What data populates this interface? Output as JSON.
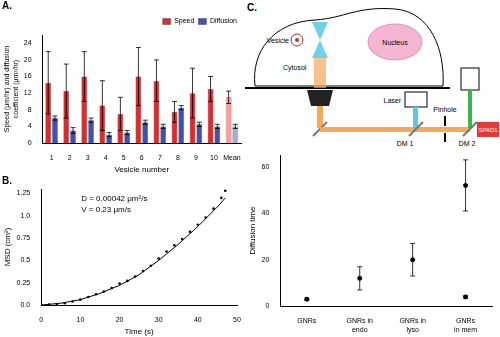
{
  "chart_data": [
    {
      "type": "bar",
      "title": "A.",
      "x_label": "Vesicle number",
      "y_label": "Speed (μm/hr) and diffusion coefficient (μm²/hr)",
      "categories": [
        "1",
        "2",
        "3",
        "4",
        "5",
        "6",
        "7",
        "8",
        "9",
        "10",
        "Mean"
      ],
      "series": [
        {
          "name": "Speed",
          "color": "#d32f2f",
          "colors": [
            "#d32f2f",
            "#d32f2f",
            "#d32f2f",
            "#d32f2f",
            "#d32f2f",
            "#d32f2f",
            "#d32f2f",
            "#d32f2f",
            "#d32f2f",
            "#d32f2f",
            "#f2a0a0"
          ],
          "values": [
            14.5,
            12.5,
            16,
            9,
            7,
            16,
            15,
            7.5,
            12,
            13,
            11
          ],
          "errors": [
            7.5,
            6.5,
            6,
            6,
            4,
            7,
            5,
            2.5,
            6,
            3,
            1.5
          ]
        },
        {
          "name": "Diffusion",
          "color": "#3f51b5",
          "colors": [
            "#3f51b5",
            "#3f51b5",
            "#3f51b5",
            "#3f51b5",
            "#3f51b5",
            "#3f51b5",
            "#3f51b5",
            "#3f51b5",
            "#3f51b5",
            "#3f51b5",
            "#a4abe0"
          ],
          "values": [
            6,
            3,
            5.5,
            2,
            2.5,
            5,
            4,
            8.5,
            4.5,
            4,
            4
          ],
          "errors": [
            0.5,
            0.7,
            0.5,
            0.5,
            0.5,
            0.5,
            0.5,
            0.5,
            0.5,
            0.5,
            0.5
          ]
        }
      ],
      "ylim": [
        0,
        26
      ],
      "yticks": [
        0,
        4,
        8,
        12,
        16,
        20,
        24
      ],
      "grid": false,
      "legend": "top-right"
    },
    {
      "type": "scatter",
      "title": "B.",
      "x_label": "Time (s)",
      "y_label": "MSD (cm²)",
      "annotations": [
        "D = 0.00042 μm²/s",
        "V = 0.23 μm/s"
      ],
      "series": [
        {
          "type": "scatter",
          "marker": "circle",
          "color": "#000000",
          "x": [
            0,
            2,
            4,
            6,
            8,
            10,
            12,
            14,
            16,
            18,
            20,
            22,
            24,
            26,
            28,
            30,
            32,
            34,
            36,
            38,
            40,
            42,
            44,
            46,
            47
          ],
          "values": [
            0,
            0.005,
            0.01,
            0.02,
            0.04,
            0.06,
            0.09,
            0.12,
            0.15,
            0.19,
            0.24,
            0.27,
            0.32,
            0.38,
            0.44,
            0.52,
            0.6,
            0.67,
            0.74,
            0.82,
            0.9,
            0.98,
            1.08,
            1.2,
            1.28
          ]
        },
        {
          "type": "line",
          "line_style": "solid",
          "color": "#000000",
          "x": [
            0,
            5,
            10,
            15,
            20,
            25,
            30,
            35,
            40,
            45,
            47
          ],
          "values": [
            0,
            0.02,
            0.06,
            0.13,
            0.22,
            0.34,
            0.5,
            0.68,
            0.88,
            1.1,
            1.2
          ]
        }
      ],
      "xlim": [
        0,
        50
      ],
      "xticks": [
        0,
        10,
        20,
        30,
        40,
        50
      ],
      "ylim": [
        0,
        1.3
      ],
      "yticks": [
        {
          "value": 0,
          "label": "0.0"
        },
        0.25,
        0.5,
        0.75,
        {
          "value": 1,
          "label": "1.0"
        },
        1.25
      ],
      "grid": false
    },
    {
      "type": "scatter",
      "y_label": "Diffusion time",
      "categories": [
        "GNRs",
        "GNRs in endo",
        "GNRs in lyso",
        "GNRs in mem"
      ],
      "series": [
        {
          "marker": "circle",
          "color": "#000000",
          "values": [
            3,
            12,
            20,
            52
          ],
          "errors": [
            0.5,
            5,
            7,
            11
          ]
        },
        {
          "marker": "circle",
          "color": "#000000",
          "values": [
            null,
            null,
            null,
            4
          ],
          "errors": [
            null,
            null,
            null,
            0.5
          ]
        }
      ],
      "ylim": [
        0,
        65
      ],
      "yticks": [
        0,
        20,
        40,
        60
      ],
      "grid": false
    }
  ],
  "diagram": {
    "title": "C.",
    "labels": {
      "vesicle": "Vesicle",
      "cytosol": "Cytosol",
      "nucleus": "Nucleus",
      "laser": "Laser",
      "dm1": "DM 1",
      "pinhole": "Pinhole",
      "dm2": "DM 2",
      "detector": "SPAD1"
    }
  }
}
